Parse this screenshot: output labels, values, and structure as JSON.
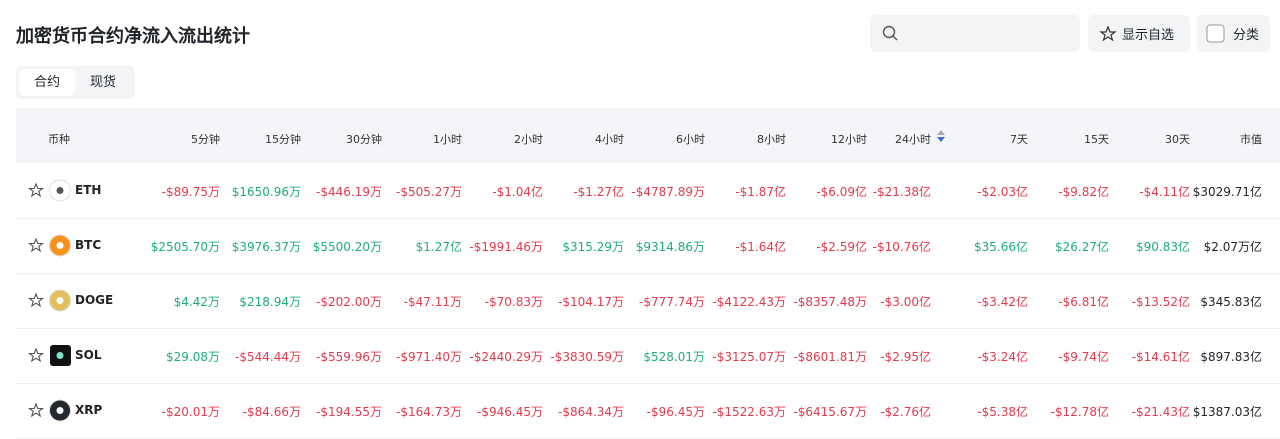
{
  "header": {
    "title": "加密货币合约净流入流出统计",
    "buttons": [
      "显示自选",
      "分类"
    ]
  },
  "tabs": [
    "合约",
    "现货"
  ],
  "table": {
    "headers": [
      "币种",
      "5分钟",
      "15分钟",
      "30分钟",
      "1小时",
      "2小时",
      "4小时",
      "6小时",
      "8小时",
      "12小时",
      "24小时",
      "7天",
      "15天",
      "30天",
      "市值"
    ],
    "rows": [
      {
        "coin": "ETH",
        "cells": [
          "-$89.75万",
          "$1650.96万",
          "-$446.19万",
          "-$505.27万",
          "-$1.04亿",
          "-$1.27亿",
          "-$4787.89万",
          "-$1.87亿",
          "-$6.09亿",
          "-$21.38亿",
          "-$2.03亿",
          "-$9.82亿",
          "-$4.11亿",
          "$3029.71亿"
        ]
      },
      {
        "coin": "BTC",
        "cells": [
          "$2505.70万",
          "$3976.37万",
          "$5500.20万",
          "$1.27亿",
          "-$1991.46万",
          "$315.29万",
          "$9314.86万",
          "-$1.64亿",
          "-$2.59亿",
          "-$10.76亿",
          "$35.66亿",
          "$26.27亿",
          "$90.83亿",
          "$2.07万亿"
        ]
      },
      {
        "coin": "DOGE",
        "cells": [
          "$4.42万",
          "$218.94万",
          "-$202.00万",
          "-$47.11万",
          "-$70.83万",
          "-$104.17万",
          "-$777.74万",
          "-$4122.43万",
          "-$8357.48万",
          "-$3.00亿",
          "-$3.42亿",
          "-$6.81亿",
          "-$13.52亿",
          "$345.83亿"
        ]
      },
      {
        "coin": "SOL",
        "cells": [
          "$29.08万",
          "-$544.44万",
          "-$559.96万",
          "-$971.40万",
          "-$2440.29万",
          "-$3830.59万",
          "$528.01万",
          "-$3125.07万",
          "-$8601.81万",
          "-$2.95亿",
          "-$3.24亿",
          "-$9.74亿",
          "-$14.61亿",
          "$897.83亿"
        ]
      },
      {
        "coin": "XRP",
        "cells": [
          "-$20.01万",
          "-$84.66万",
          "-$194.55万",
          "-$164.73万",
          "-$946.45万",
          "-$864.34万",
          "-$96.45万",
          "-$1522.63万",
          "-$6415.67万",
          "-$2.76亿",
          "-$5.38亿",
          "-$12.78亿",
          "-$21.43亿",
          "$1387.03亿"
        ]
      }
    ]
  }
}
